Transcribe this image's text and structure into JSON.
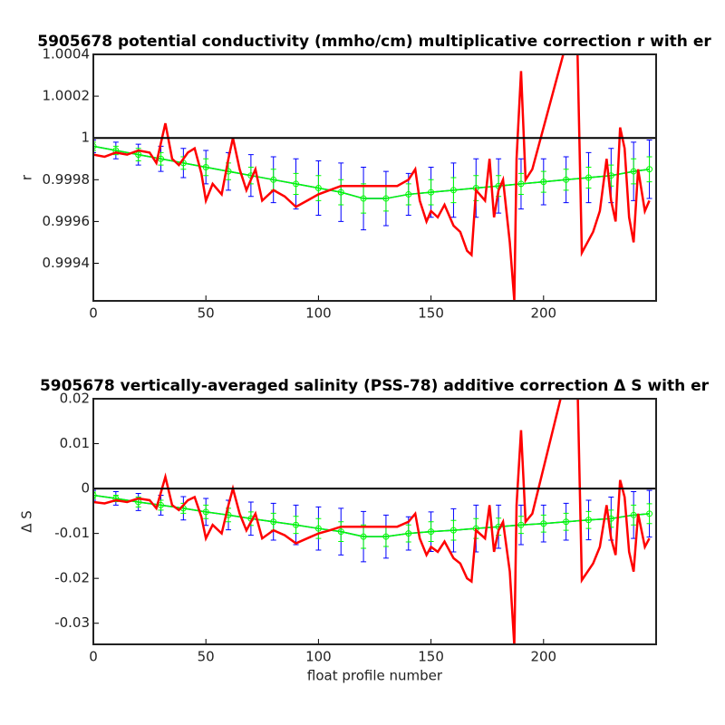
{
  "chart_data": [
    {
      "type": "line",
      "title": "5905678 potential conductivity (mmho/cm) multiplicative correction r with er",
      "ylabel": "r",
      "xlim": [
        0,
        250
      ],
      "ylim": [
        0.99922,
        1.0004
      ],
      "xticks": [
        0,
        50,
        100,
        150,
        200
      ],
      "yticks": [
        0.9994,
        0.9996,
        0.9998,
        1,
        1.0002,
        1.0004
      ],
      "hline": 1,
      "hline_color": "#000000",
      "series": [
        {
          "color": "#0000ff",
          "x": [
            0,
            10,
            20,
            30,
            40,
            50,
            60,
            70,
            80,
            90,
            100,
            110,
            120,
            130,
            140,
            150,
            160,
            170,
            180,
            190,
            200,
            210,
            220,
            230,
            240,
            247
          ],
          "values": [
            0.99996,
            0.99994,
            0.99992,
            0.9999,
            0.99988,
            0.99986,
            0.99984,
            0.99982,
            0.9998,
            0.99978,
            0.99976,
            0.99974,
            0.99971,
            0.99971,
            0.99973,
            0.99974,
            0.99975,
            0.99976,
            0.99977,
            0.99978,
            0.99979,
            0.9998,
            0.99981,
            0.99982,
            0.99984,
            0.99985
          ],
          "errors": [
            3e-05,
            4e-05,
            5e-05,
            6e-05,
            7e-05,
            8e-05,
            9e-05,
            0.0001,
            0.00011,
            0.00012,
            0.00013,
            0.00014,
            0.00015,
            0.00013,
            0.0001,
            0.00012,
            0.00013,
            0.00014,
            0.00013,
            0.00012,
            0.00011,
            0.00011,
            0.00012,
            0.00013,
            0.00014,
            0.00014
          ]
        },
        {
          "color": "#00ff00",
          "x": [
            0,
            10,
            20,
            30,
            40,
            50,
            60,
            70,
            80,
            90,
            100,
            110,
            120,
            130,
            140,
            150,
            160,
            170,
            180,
            190,
            200,
            210,
            220,
            230,
            240,
            247
          ],
          "values": [
            0.99996,
            0.99994,
            0.99992,
            0.9999,
            0.99988,
            0.99986,
            0.99984,
            0.99982,
            0.9998,
            0.99978,
            0.99976,
            0.99974,
            0.99971,
            0.99971,
            0.99973,
            0.99974,
            0.99975,
            0.99976,
            0.99977,
            0.99978,
            0.99979,
            0.9998,
            0.99981,
            0.99982,
            0.99984,
            0.99985
          ],
          "errors": [
            2e-05,
            2e-05,
            3e-05,
            3e-05,
            3e-05,
            4e-05,
            4e-05,
            4e-05,
            5e-05,
            5e-05,
            6e-05,
            6e-05,
            7e-05,
            6e-05,
            5e-05,
            6e-05,
            6e-05,
            6e-05,
            5e-05,
            5e-05,
            5e-05,
            5e-05,
            5e-05,
            5e-05,
            6e-05,
            6e-05
          ]
        },
        {
          "color": "#ff0000",
          "x": [
            0,
            5,
            10,
            15,
            20,
            25,
            28,
            32,
            35,
            38,
            42,
            45,
            48,
            50,
            53,
            57,
            60,
            62,
            65,
            68,
            72,
            75,
            80,
            85,
            90,
            95,
            100,
            105,
            110,
            115,
            120,
            125,
            130,
            135,
            140,
            143,
            145,
            148,
            150,
            153,
            156,
            160,
            163,
            166,
            168,
            170,
            174,
            176,
            178,
            180,
            182,
            185,
            187,
            188,
            190,
            192,
            195,
            210,
            215,
            217,
            222,
            225,
            228,
            230,
            232,
            234,
            236,
            238,
            240,
            242,
            245,
            247
          ],
          "values": [
            0.99992,
            0.99991,
            0.99993,
            0.99992,
            0.99994,
            0.99993,
            0.99988,
            1.00007,
            0.9999,
            0.99987,
            0.99993,
            0.99995,
            0.99983,
            0.9997,
            0.99978,
            0.99973,
            0.9999,
            1,
            0.99985,
            0.99975,
            0.99985,
            0.9997,
            0.99975,
            0.99972,
            0.99967,
            0.9997,
            0.99973,
            0.99975,
            0.99977,
            0.99977,
            0.99977,
            0.99977,
            0.99977,
            0.99977,
            0.9998,
            0.99985,
            0.9997,
            0.9996,
            0.99965,
            0.99962,
            0.99968,
            0.99958,
            0.99955,
            0.99946,
            0.99944,
            0.99975,
            0.9997,
            0.9999,
            0.99962,
            0.99975,
            0.9998,
            0.9995,
            0.99922,
            0.9999,
            1.00032,
            0.9998,
            0.99985,
            1.00045,
            1.00045,
            0.99945,
            0.99955,
            0.99965,
            0.9999,
            0.9997,
            0.9996,
            1.00005,
            0.99995,
            0.99962,
            0.9995,
            0.99985,
            0.99965,
            0.9997
          ]
        }
      ]
    },
    {
      "type": "line",
      "title": "5905678 vertically-averaged salinity (PSS-78) additive correction Δ S with er",
      "ylabel": "Δ S",
      "xlabel": "float profile number",
      "xlim": [
        0,
        250
      ],
      "ylim": [
        -0.0347,
        0.02
      ],
      "xticks": [
        0,
        50,
        100,
        150,
        200
      ],
      "yticks": [
        -0.03,
        -0.02,
        -0.01,
        0,
        0.01,
        0.02
      ],
      "hline": 0,
      "hline_color": "#000000",
      "series": [
        {
          "color": "#0000ff",
          "x": [
            0,
            10,
            20,
            30,
            40,
            50,
            60,
            70,
            80,
            90,
            100,
            110,
            120,
            130,
            140,
            150,
            160,
            170,
            180,
            190,
            200,
            210,
            220,
            230,
            240,
            247
          ],
          "values": [
            -0.0015,
            -0.0022,
            -0.003,
            -0.0037,
            -0.0044,
            -0.0052,
            -0.0059,
            -0.0067,
            -0.0074,
            -0.0081,
            -0.0089,
            -0.0096,
            -0.0107,
            -0.0107,
            -0.01,
            -0.0096,
            -0.0093,
            -0.0089,
            -0.0085,
            -0.0081,
            -0.0078,
            -0.0074,
            -0.007,
            -0.0067,
            -0.0059,
            -0.0056
          ],
          "errors": [
            0.0011,
            0.0015,
            0.0019,
            0.0022,
            0.0026,
            0.003,
            0.0033,
            0.0037,
            0.0041,
            0.0044,
            0.0048,
            0.0052,
            0.0056,
            0.0048,
            0.0037,
            0.0044,
            0.0048,
            0.0052,
            0.0048,
            0.0044,
            0.0041,
            0.0041,
            0.0044,
            0.0048,
            0.0052,
            0.0052
          ]
        },
        {
          "color": "#00ff00",
          "x": [
            0,
            10,
            20,
            30,
            40,
            50,
            60,
            70,
            80,
            90,
            100,
            110,
            120,
            130,
            140,
            150,
            160,
            170,
            180,
            190,
            200,
            210,
            220,
            230,
            240,
            247
          ],
          "values": [
            -0.0015,
            -0.0022,
            -0.003,
            -0.0037,
            -0.0044,
            -0.0052,
            -0.0059,
            -0.0067,
            -0.0074,
            -0.0081,
            -0.0089,
            -0.0096,
            -0.0107,
            -0.0107,
            -0.01,
            -0.0096,
            -0.0093,
            -0.0089,
            -0.0085,
            -0.0081,
            -0.0078,
            -0.0074,
            -0.007,
            -0.0067,
            -0.0059,
            -0.0056
          ],
          "errors": [
            0.0007,
            0.0007,
            0.0011,
            0.0011,
            0.0011,
            0.0015,
            0.0015,
            0.0015,
            0.0019,
            0.0019,
            0.0022,
            0.0022,
            0.0026,
            0.0022,
            0.0019,
            0.0022,
            0.0022,
            0.0022,
            0.0019,
            0.0019,
            0.0019,
            0.0019,
            0.0019,
            0.0019,
            0.0022,
            0.0022
          ]
        },
        {
          "color": "#ff0000",
          "x": [
            0,
            5,
            10,
            15,
            20,
            25,
            28,
            32,
            35,
            38,
            42,
            45,
            48,
            50,
            53,
            57,
            60,
            62,
            65,
            68,
            72,
            75,
            80,
            85,
            90,
            95,
            100,
            105,
            110,
            115,
            120,
            125,
            130,
            135,
            140,
            143,
            145,
            148,
            150,
            153,
            156,
            160,
            163,
            166,
            168,
            170,
            174,
            176,
            178,
            180,
            182,
            185,
            187,
            188,
            190,
            192,
            195,
            210,
            215,
            217,
            222,
            225,
            228,
            230,
            232,
            234,
            236,
            238,
            240,
            242,
            245,
            247
          ],
          "values": [
            -0.003,
            -0.0033,
            -0.0026,
            -0.003,
            -0.0022,
            -0.0026,
            -0.0044,
            0.0026,
            -0.0037,
            -0.0048,
            -0.0026,
            -0.0019,
            -0.0063,
            -0.0111,
            -0.0081,
            -0.01,
            -0.0037,
            0,
            -0.0056,
            -0.0093,
            -0.0056,
            -0.0111,
            -0.0093,
            -0.0104,
            -0.0122,
            -0.0111,
            -0.01,
            -0.0093,
            -0.0085,
            -0.0085,
            -0.0085,
            -0.0085,
            -0.0085,
            -0.0085,
            -0.0074,
            -0.0056,
            -0.0111,
            -0.0148,
            -0.013,
            -0.0141,
            -0.0118,
            -0.0155,
            -0.0167,
            -0.02,
            -0.0207,
            -0.0093,
            -0.0111,
            -0.0037,
            -0.0141,
            -0.0093,
            -0.0074,
            -0.0185,
            -0.035,
            -0.0037,
            0.013,
            -0.0074,
            -0.0056,
            0.025,
            0.025,
            -0.0204,
            -0.0167,
            -0.013,
            -0.0037,
            -0.0111,
            -0.0148,
            0.0019,
            -0.0019,
            -0.0141,
            -0.0185,
            -0.0056,
            -0.013,
            -0.0111
          ]
        }
      ]
    }
  ]
}
